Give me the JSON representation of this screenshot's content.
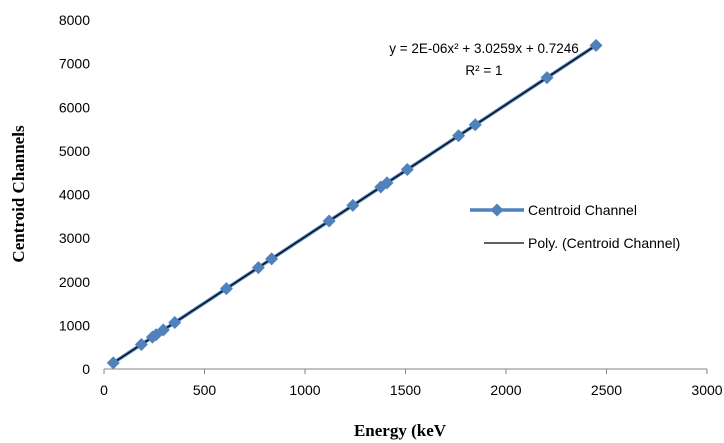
{
  "chart_data": {
    "type": "scatter",
    "xlabel": "Energy (keV",
    "ylabel": "Centroid Channels",
    "xlim": [
      0,
      3000
    ],
    "ylim": [
      0,
      8000
    ],
    "xticks": [
      "0",
      "500",
      "1000",
      "1500",
      "2000",
      "2500",
      "3000"
    ],
    "yticks": [
      "0",
      "1000",
      "2000",
      "3000",
      "4000",
      "5000",
      "6000",
      "7000",
      "8000"
    ],
    "grid": false,
    "legend_position": "right",
    "series": [
      {
        "name": "Centroid Channel",
        "style": "line-with-diamond-markers",
        "color": "#4f81bd",
        "x": [
          46,
          186,
          241,
          259,
          295,
          352,
          609,
          768,
          834,
          1120,
          1238,
          1377,
          1408,
          1509,
          1764,
          1847,
          2204,
          2448
        ],
        "y": [
          140,
          563,
          730,
          785,
          893,
          1066,
          1843,
          2325,
          2525,
          3392,
          3750,
          4172,
          4267,
          4573,
          5346,
          5598,
          6679,
          7419
        ]
      },
      {
        "name": "Poly. (Centroid Channel)",
        "style": "trendline",
        "color": "#000000",
        "coefficients": {
          "a": 2e-06,
          "b": 3.0259,
          "c": 0.7246
        },
        "x_range": [
          46,
          2448
        ]
      }
    ],
    "annotations": {
      "equation": "y = 2E-06x² + 3.0259x + 0.7246",
      "r_squared": "R² = 1"
    }
  }
}
